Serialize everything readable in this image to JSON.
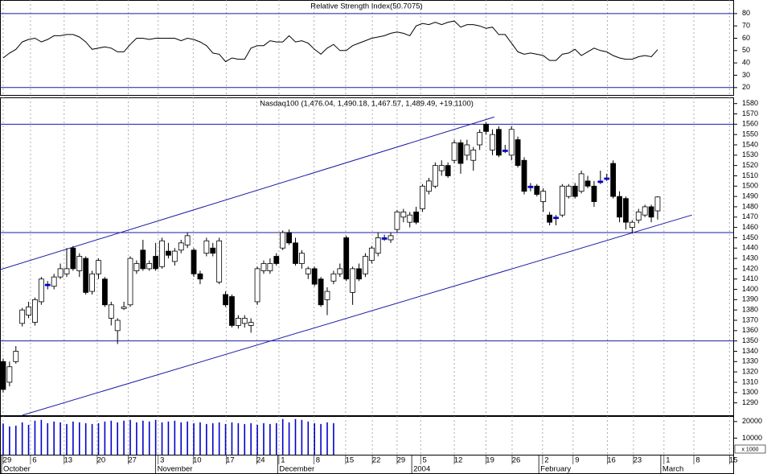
{
  "chart_data": [
    {
      "type": "line",
      "title": "Relative Strength Index(50.7075)",
      "color": "#000000",
      "x": [
        0,
        1,
        2,
        3,
        4,
        5,
        6,
        7,
        8,
        9,
        10,
        11,
        12,
        13,
        14,
        15,
        16,
        17,
        18,
        19,
        20,
        21,
        22,
        23,
        24,
        25,
        26,
        27,
        28,
        29,
        30,
        31,
        32,
        33,
        34,
        35,
        36,
        37,
        38,
        39,
        40,
        41,
        42,
        43,
        44,
        45,
        46,
        47,
        48,
        49,
        50,
        51,
        52,
        53,
        54,
        55,
        56,
        57,
        58,
        59,
        60,
        61,
        62,
        63,
        64,
        65,
        66,
        67,
        68,
        69,
        70,
        71,
        72,
        73,
        74,
        75,
        76,
        77,
        78,
        79,
        80,
        81,
        82,
        83,
        84,
        85,
        86,
        87,
        88,
        89,
        90,
        91,
        92,
        93,
        94,
        95,
        96,
        97,
        98,
        99,
        100,
        101,
        102,
        103
      ],
      "values": [
        44,
        48,
        51,
        57,
        59,
        60,
        57,
        59,
        62,
        62,
        63,
        63,
        61,
        57,
        51,
        52,
        53,
        52,
        49,
        49,
        55,
        60,
        60,
        59,
        60,
        60,
        60,
        60,
        58,
        60,
        59,
        57,
        54,
        48,
        47,
        41,
        44,
        43,
        43,
        52,
        54,
        54,
        58,
        57,
        57,
        62,
        57,
        58,
        56,
        51,
        47,
        52,
        55,
        50,
        50,
        54,
        56,
        58,
        60,
        61,
        62,
        64,
        65,
        64,
        62,
        70,
        72,
        71,
        73,
        71,
        73,
        74,
        69,
        71,
        71,
        70,
        68,
        69,
        63,
        63,
        56,
        49,
        47,
        48,
        47,
        46,
        42,
        42,
        47,
        48,
        51,
        46,
        49,
        52,
        50,
        49,
        46,
        44,
        43,
        43,
        45,
        46,
        45,
        50.7075
      ],
      "xlim": [
        -0.5,
        114.9
      ],
      "ylim": [
        14,
        91
      ],
      "yticks": [
        20,
        30,
        40,
        50,
        60,
        70,
        80
      ],
      "hlines": [
        80,
        20
      ],
      "hline_color": "#1a1aa6"
    },
    {
      "type": "candlestick",
      "title": "Nasdaq100 (1,476.04, 1,490.18, 1,467.57, 1,489.49, +19.1100)",
      "x": [
        0,
        1,
        2,
        3,
        4,
        5,
        6,
        7,
        8,
        9,
        10,
        11,
        12,
        13,
        14,
        15,
        16,
        17,
        18,
        19,
        20,
        21,
        22,
        23,
        24,
        25,
        26,
        27,
        28,
        29,
        30,
        31,
        32,
        33,
        34,
        35,
        36,
        37,
        38,
        39,
        40,
        41,
        42,
        43,
        44,
        45,
        46,
        47,
        48,
        49,
        50,
        51,
        52,
        53,
        54,
        55,
        56,
        57,
        58,
        59,
        60,
        61,
        62,
        63,
        64,
        65,
        66,
        67,
        68,
        69,
        70,
        71,
        72,
        73,
        74,
        75,
        76,
        77,
        78,
        79,
        80,
        81,
        82,
        83,
        84,
        85,
        86,
        87,
        88,
        89,
        90,
        91,
        92,
        93,
        94,
        95,
        96,
        97,
        98,
        99,
        100,
        101,
        102,
        103
      ],
      "open": [
        1330,
        1310,
        1330,
        1367,
        1375,
        1368,
        1388,
        1405,
        1403,
        1412,
        1415,
        1440,
        1418,
        1430,
        1398,
        1415,
        1410,
        1372,
        1360,
        1382,
        1385,
        1418,
        1438,
        1420,
        1432,
        1422,
        1437,
        1427,
        1438,
        1443,
        1438,
        1415,
        1435,
        1440,
        1407,
        1395,
        1393,
        1365,
        1367,
        1365,
        1388,
        1418,
        1418,
        1432,
        1440,
        1455,
        1445,
        1425,
        1415,
        1420,
        1410,
        1390,
        1408,
        1415,
        1450,
        1397,
        1420,
        1415,
        1428,
        1435,
        1450,
        1448,
        1458,
        1470,
        1465,
        1475,
        1478,
        1495,
        1500,
        1515,
        1520,
        1525,
        1542,
        1530,
        1525,
        1540,
        1560,
        1535,
        1555,
        1535,
        1530,
        1545,
        1525,
        1500,
        1500,
        1485,
        1472,
        1470,
        1472,
        1490,
        1500,
        1495,
        1505,
        1500,
        1505,
        1508,
        1522,
        1490,
        1488,
        1460,
        1467,
        1472,
        1480,
        1476.04
      ],
      "high": [
        1333,
        1330,
        1345,
        1382,
        1388,
        1392,
        1412,
        1408,
        1415,
        1425,
        1440,
        1442,
        1435,
        1432,
        1418,
        1430,
        1412,
        1388,
        1372,
        1388,
        1432,
        1428,
        1448,
        1428,
        1445,
        1450,
        1445,
        1440,
        1448,
        1455,
        1440,
        1418,
        1450,
        1445,
        1450,
        1398,
        1395,
        1375,
        1375,
        1372,
        1422,
        1428,
        1430,
        1435,
        1457,
        1458,
        1450,
        1438,
        1422,
        1422,
        1412,
        1402,
        1418,
        1425,
        1452,
        1422,
        1425,
        1435,
        1442,
        1455,
        1453,
        1455,
        1477,
        1478,
        1475,
        1480,
        1502,
        1508,
        1523,
        1525,
        1523,
        1545,
        1545,
        1545,
        1538,
        1555,
        1562,
        1555,
        1558,
        1540,
        1558,
        1548,
        1528,
        1503,
        1502,
        1498,
        1475,
        1472,
        1502,
        1502,
        1503,
        1515,
        1510,
        1505,
        1515,
        1512,
        1525,
        1495,
        1490,
        1467,
        1478,
        1482,
        1482,
        1490.18
      ],
      "low": [
        1300,
        1306,
        1328,
        1364,
        1372,
        1365,
        1385,
        1400,
        1400,
        1410,
        1412,
        1418,
        1412,
        1395,
        1395,
        1410,
        1383,
        1365,
        1347,
        1380,
        1383,
        1415,
        1418,
        1418,
        1418,
        1420,
        1430,
        1423,
        1435,
        1440,
        1412,
        1405,
        1432,
        1432,
        1405,
        1383,
        1363,
        1362,
        1363,
        1358,
        1385,
        1415,
        1415,
        1423,
        1438,
        1443,
        1423,
        1420,
        1410,
        1403,
        1383,
        1375,
        1405,
        1412,
        1408,
        1385,
        1408,
        1412,
        1425,
        1432,
        1447,
        1445,
        1455,
        1465,
        1460,
        1463,
        1475,
        1492,
        1498,
        1510,
        1508,
        1522,
        1512,
        1525,
        1515,
        1535,
        1550,
        1530,
        1528,
        1532,
        1525,
        1518,
        1492,
        1495,
        1490,
        1475,
        1462,
        1462,
        1470,
        1488,
        1488,
        1493,
        1498,
        1480,
        1502,
        1505,
        1488,
        1465,
        1458,
        1454,
        1464,
        1470,
        1465,
        1467.57
      ],
      "close": [
        1303,
        1325,
        1340,
        1380,
        1383,
        1390,
        1410,
        1405,
        1412,
        1420,
        1420,
        1420,
        1432,
        1397,
        1415,
        1428,
        1385,
        1385,
        1370,
        1383,
        1430,
        1425,
        1420,
        1425,
        1420,
        1447,
        1433,
        1437,
        1445,
        1452,
        1415,
        1410,
        1447,
        1435,
        1447,
        1385,
        1365,
        1372,
        1372,
        1368,
        1420,
        1425,
        1425,
        1425,
        1455,
        1445,
        1425,
        1435,
        1420,
        1405,
        1385,
        1398,
        1415,
        1420,
        1410,
        1420,
        1410,
        1432,
        1440,
        1450,
        1450,
        1452,
        1475,
        1475,
        1472,
        1465,
        1500,
        1505,
        1520,
        1520,
        1510,
        1542,
        1522,
        1540,
        1535,
        1552,
        1553,
        1550,
        1530,
        1535,
        1555,
        1520,
        1495,
        1500,
        1492,
        1495,
        1465,
        1470,
        1500,
        1500,
        1490,
        1512,
        1500,
        1485,
        1505,
        1508,
        1490,
        1470,
        1465,
        1465,
        1475,
        1480,
        1470,
        1489.49
      ],
      "up_color": "#ffffff",
      "down_color": "#000000",
      "flat_color": "#0000cc",
      "trendlines": [
        {
          "x": [
            -0.5,
            77.3
          ],
          "y": [
            1419,
            1567
          ]
        },
        {
          "x": [
            3,
            108.4
          ],
          "y": [
            1278,
            1472
          ]
        }
      ],
      "line_color": "#1a1aa6",
      "hlines": [
        1560,
        1455,
        1350
      ],
      "hline_color": "#1a1aa6",
      "xlim": [
        -0.5,
        114.9
      ],
      "ylim": [
        1278,
        1586
      ],
      "yticks": [
        1290,
        1300,
        1310,
        1320,
        1330,
        1340,
        1350,
        1360,
        1370,
        1380,
        1390,
        1400,
        1410,
        1420,
        1430,
        1440,
        1450,
        1460,
        1470,
        1480,
        1490,
        1500,
        1510,
        1520,
        1530,
        1540,
        1550,
        1560,
        1570,
        1580
      ]
    },
    {
      "type": "bar",
      "color": "#0000cc",
      "unit_note": "x 1000",
      "x": [
        0,
        1,
        2,
        3,
        4,
        5,
        6,
        7,
        8,
        9,
        10,
        11,
        12,
        13,
        14,
        15,
        16,
        17,
        18,
        19,
        20,
        21,
        22,
        23,
        24,
        25,
        26,
        27,
        28,
        29,
        30,
        31,
        32,
        33,
        34,
        35,
        36,
        37,
        38,
        39,
        40,
        41,
        42,
        43,
        44,
        45,
        46,
        47,
        48,
        49,
        50,
        51,
        52
      ],
      "values": [
        18800,
        17000,
        17500,
        19500,
        18000,
        20500,
        21000,
        19000,
        20000,
        19500,
        18500,
        20000,
        19500,
        19000,
        18500,
        19000,
        20000,
        20500,
        19500,
        20500,
        21000,
        19500,
        20500,
        20000,
        21000,
        19500,
        20000,
        20500,
        19500,
        20000,
        19000,
        19500,
        18500,
        19000,
        19500,
        18500,
        19500,
        19000,
        18500,
        19000,
        18000,
        19000,
        18500,
        19000,
        21500,
        19500,
        21500,
        21000,
        20000,
        19000,
        18500,
        19500,
        19000
      ],
      "xlim": [
        -0.5,
        114.9
      ],
      "ylim": [
        0,
        23300
      ],
      "yticks": [
        10000,
        20000
      ],
      "xticks": [
        {
          "value": 0,
          "label": "29"
        },
        {
          "value": 4.3,
          "label": "6"
        },
        {
          "value": 9.6,
          "label": "13"
        },
        {
          "value": 14.8,
          "label": "20"
        },
        {
          "value": 19.7,
          "label": "27"
        },
        {
          "value": 24.4,
          "label": "3"
        },
        {
          "value": 29.9,
          "label": "10"
        },
        {
          "value": 35.1,
          "label": "17"
        },
        {
          "value": 39.9,
          "label": "24"
        },
        {
          "value": 43.4,
          "label": "1"
        },
        {
          "value": 48.9,
          "label": "8"
        },
        {
          "value": 53.9,
          "label": "15"
        },
        {
          "value": 58.1,
          "label": "22"
        },
        {
          "value": 62,
          "label": "29"
        },
        {
          "value": 65.7,
          "label": "5"
        },
        {
          "value": 71,
          "label": "12"
        },
        {
          "value": 76,
          "label": "19"
        },
        {
          "value": 80.1,
          "label": "26"
        },
        {
          "value": 84.9,
          "label": "2"
        },
        {
          "value": 89.7,
          "label": "9"
        },
        {
          "value": 95.1,
          "label": "16"
        },
        {
          "value": 99.2,
          "label": "23"
        },
        {
          "value": 104,
          "label": "1"
        },
        {
          "value": 108.7,
          "label": "8"
        },
        {
          "value": 114.3,
          "label": "15"
        }
      ],
      "month_ticks": [
        {
          "value": -0.25,
          "label": "October"
        },
        {
          "value": 24,
          "label": "November"
        },
        {
          "value": 43.2,
          "label": "December"
        },
        {
          "value": 64.3,
          "label": "2004"
        },
        {
          "value": 84.3,
          "label": "February"
        },
        {
          "value": 103.5,
          "label": "March"
        }
      ]
    }
  ]
}
